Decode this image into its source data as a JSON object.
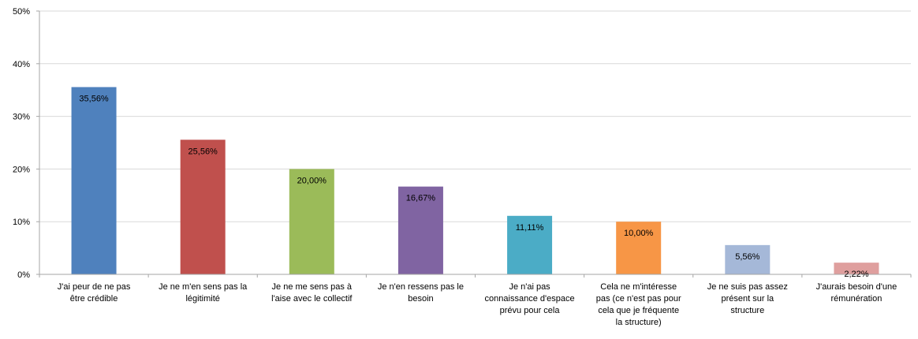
{
  "chart_data": {
    "type": "bar",
    "title": "",
    "xlabel": "",
    "ylabel": "",
    "ylim": [
      0,
      0.5
    ],
    "y_ticks": [
      "0%",
      "10%",
      "20%",
      "30%",
      "40%",
      "50%"
    ],
    "grid": true,
    "legend": "none",
    "categories": [
      [
        "J'ai peur de ne pas",
        "être crédible"
      ],
      [
        "Je ne m'en sens pas la",
        "légitimité"
      ],
      [
        "Je ne me sens pas à",
        "l'aise avec le collectif"
      ],
      [
        "Je n'en ressens pas le",
        "besoin"
      ],
      [
        "Je n'ai pas",
        "connaissance d'espace",
        "prévu pour cela"
      ],
      [
        "Cela ne m'intéresse",
        "pas (ce n'est pas pour",
        "cela que je fréquente",
        "la structure)"
      ],
      [
        "Je ne suis pas assez",
        "présent sur la",
        "structure"
      ],
      [
        "J'aurais besoin d'une",
        "rémunération"
      ]
    ],
    "values": [
      0.3556,
      0.2556,
      0.2,
      0.1667,
      0.1111,
      0.1,
      0.0556,
      0.0222
    ],
    "data_labels": [
      "35,56%",
      "25,56%",
      "20,00%",
      "16,67%",
      "11,11%",
      "10,00%",
      "5,56%",
      "2,22%"
    ],
    "colors": [
      "#4f81bd",
      "#c0504d",
      "#9bbb59",
      "#8064a2",
      "#4bacc6",
      "#f79646",
      "#a5b8d8",
      "#df9f9e"
    ]
  }
}
